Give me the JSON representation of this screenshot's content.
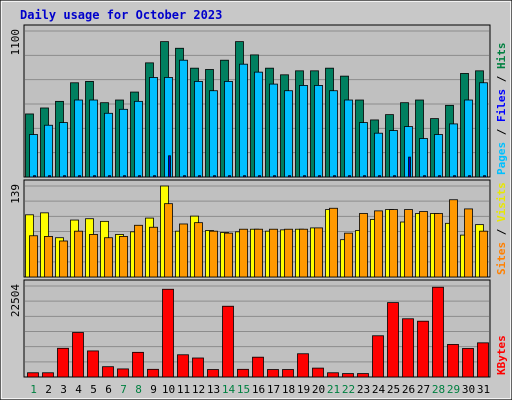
{
  "chart_data": {
    "type": "bar",
    "title": "Daily usage for October 2023",
    "categories": [
      "1",
      "2",
      "3",
      "4",
      "5",
      "6",
      "7",
      "8",
      "9",
      "10",
      "11",
      "12",
      "13",
      "14",
      "15",
      "16",
      "17",
      "18",
      "19",
      "20",
      "21",
      "22",
      "23",
      "24",
      "25",
      "26",
      "27",
      "28",
      "29",
      "30",
      "31"
    ],
    "weekend_days": [
      "1",
      "7",
      "8",
      "14",
      "15",
      "21",
      "22",
      "28",
      "29"
    ],
    "panels": [
      {
        "name": "hits-files-pages",
        "scale_label": "1100",
        "ymax": 1100,
        "grid": true,
        "legend": [
          {
            "text": "Pages",
            "color": "#00c0ff"
          },
          {
            "text": " / ",
            "color": "#000000"
          },
          {
            "text": "Files",
            "color": "#0000ff"
          },
          {
            "text": " / ",
            "color": "#000000"
          },
          {
            "text": "Hits",
            "color": "#008040"
          }
        ],
        "series": [
          {
            "name": "Hits",
            "color": "#008060",
            "values": [
              475,
              520,
              570,
              710,
              720,
              560,
              580,
              640,
              860,
              1020,
              970,
              820,
              810,
              880,
              1020,
              920,
              820,
              770,
              800,
              800,
              820,
              760,
              580,
              430,
              470,
              560,
              580,
              440,
              540,
              780,
              800
            ]
          },
          {
            "name": "Files",
            "color": "#00c0ff",
            "values": [
              320,
              390,
              410,
              580,
              580,
              480,
              510,
              570,
              750,
              750,
              880,
              720,
              650,
              720,
              850,
              790,
              700,
              650,
              690,
              690,
              650,
              580,
              410,
              330,
              350,
              380,
              290,
              320,
              400,
              580,
              710
            ]
          },
          {
            "name": "Pages",
            "color": "#0000cc",
            "values": [
              10,
              10,
              10,
              10,
              10,
              10,
              10,
              10,
              10,
              160,
              10,
              10,
              10,
              10,
              10,
              10,
              10,
              10,
              10,
              10,
              10,
              10,
              10,
              10,
              10,
              150,
              10,
              10,
              10,
              10,
              10
            ]
          }
        ]
      },
      {
        "name": "visits-sites",
        "scale_label": "139",
        "ymax": 139,
        "grid": true,
        "legend": [
          {
            "text": "Sites",
            "color": "#ff8000"
          },
          {
            "text": " / ",
            "color": "#000000"
          },
          {
            "text": "Visits",
            "color": "#e8e800"
          }
        ],
        "series": [
          {
            "name": "Visits",
            "color": "#ffff00",
            "values": [
              95,
              98,
              60,
              87,
              89,
              85,
              65,
              69,
              90,
              139,
              70,
              93,
              71,
              68,
              69,
              73,
              70,
              72,
              73,
              75,
              103,
              57,
              71,
              88,
              103,
              84,
              97,
              97,
              82,
              64,
              80
            ]
          },
          {
            "name": "Sites",
            "color": "#ff9900",
            "values": [
              63,
              62,
              55,
              70,
              65,
              60,
              62,
              79,
              76,
              112,
              81,
              83,
              70,
              67,
              73,
              73,
              73,
              73,
              73,
              75,
              105,
              67,
              97,
              101,
              103,
              103,
              100,
              97,
              118,
              104,
              70
            ]
          }
        ]
      },
      {
        "name": "kbytes",
        "scale_label": "22504",
        "ymax": 22504,
        "grid": true,
        "legend": [
          {
            "text": "KBytes",
            "color": "#ff0000"
          }
        ],
        "series": [
          {
            "name": "KBytes",
            "color": "#ff0000",
            "values": [
              1050,
              1050,
              7100,
              11000,
              6450,
              2550,
              2000,
              6100,
              1900,
              21700,
              5500,
              4700,
              1850,
              17500,
              1900,
              4900,
              1850,
              1850,
              5750,
              2200,
              1050,
              850,
              850,
              10200,
              18400,
              14400,
              13800,
              22200,
              8050,
              7050,
              8450
            ]
          }
        ]
      }
    ]
  }
}
